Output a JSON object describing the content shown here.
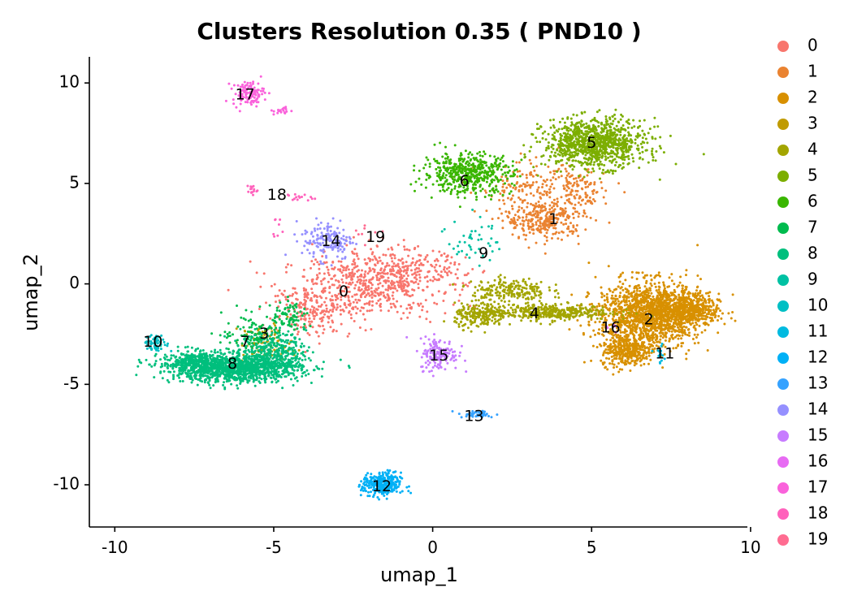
{
  "chart_data": {
    "type": "scatter",
    "title": "Clusters Resolution 0.35 ( PND10 )",
    "xlabel": "umap_1",
    "ylabel": "umap_2",
    "xlim": [
      -10.8,
      9.9
    ],
    "ylim": [
      -12.1,
      11.3
    ],
    "xticks": [
      -10,
      -5,
      0,
      5,
      10
    ],
    "yticks": [
      -10,
      -5,
      0,
      5,
      10
    ],
    "grid": false,
    "legend_position": "right",
    "legend": [
      {
        "name": "0",
        "color": "#F8766D"
      },
      {
        "name": "1",
        "color": "#EA8331"
      },
      {
        "name": "2",
        "color": "#D89000"
      },
      {
        "name": "3",
        "color": "#C09B00"
      },
      {
        "name": "4",
        "color": "#A3A500"
      },
      {
        "name": "5",
        "color": "#7CAE00"
      },
      {
        "name": "6",
        "color": "#39B600"
      },
      {
        "name": "7",
        "color": "#00BB4E"
      },
      {
        "name": "8",
        "color": "#00BF7D"
      },
      {
        "name": "9",
        "color": "#00C1A3"
      },
      {
        "name": "10",
        "color": "#00BFC4"
      },
      {
        "name": "11",
        "color": "#00BAE0"
      },
      {
        "name": "12",
        "color": "#00B0F6"
      },
      {
        "name": "13",
        "color": "#35A2FF"
      },
      {
        "name": "14",
        "color": "#9590FF"
      },
      {
        "name": "15",
        "color": "#C77CFF"
      },
      {
        "name": "16",
        "color": "#E76BF3"
      },
      {
        "name": "17",
        "color": "#FA62DB"
      },
      {
        "name": "18",
        "color": "#FF62BC"
      },
      {
        "name": "19",
        "color": "#FF6C91"
      }
    ],
    "clusters": [
      {
        "id": "0",
        "label_x": -2.8,
        "label_y": -0.4,
        "blobs": [
          {
            "cx": -2.2,
            "cy": -0.2,
            "sx": 1.3,
            "sy": 0.8,
            "n": 500
          },
          {
            "cx": -1.0,
            "cy": 0.6,
            "sx": 1.0,
            "sy": 0.6,
            "n": 250
          },
          {
            "cx": -3.8,
            "cy": -1.4,
            "sx": 0.6,
            "sy": 0.6,
            "n": 150
          }
        ]
      },
      {
        "id": "1",
        "label_x": 3.8,
        "label_y": 3.2,
        "blobs": [
          {
            "cx": 3.5,
            "cy": 3.2,
            "sx": 0.6,
            "sy": 0.5,
            "n": 300
          },
          {
            "cx": 3.0,
            "cy": 4.8,
            "sx": 0.8,
            "sy": 0.6,
            "n": 150
          },
          {
            "cx": 4.6,
            "cy": 4.5,
            "sx": 0.4,
            "sy": 0.7,
            "n": 120
          }
        ]
      },
      {
        "id": "2",
        "label_x": 6.8,
        "label_y": -1.8,
        "blobs": [
          {
            "cx": 6.8,
            "cy": -1.5,
            "sx": 0.8,
            "sy": 0.8,
            "n": 1400
          },
          {
            "cx": 8.0,
            "cy": -1.3,
            "sx": 0.5,
            "sy": 0.4,
            "n": 500
          },
          {
            "cx": 6.1,
            "cy": -3.3,
            "sx": 0.4,
            "sy": 0.4,
            "n": 350
          }
        ]
      },
      {
        "id": "3",
        "label_x": -5.3,
        "label_y": -2.5,
        "blobs": [
          {
            "cx": -5.2,
            "cy": -3.0,
            "sx": 0.4,
            "sy": 0.5,
            "n": 100
          }
        ]
      },
      {
        "id": "4",
        "label_x": 3.2,
        "label_y": -1.5,
        "blobs": [
          {
            "cx": 3.6,
            "cy": -1.4,
            "sx": 1.0,
            "sy": 0.2,
            "n": 400
          },
          {
            "cx": 2.4,
            "cy": -0.3,
            "sx": 0.6,
            "sy": 0.3,
            "n": 200
          },
          {
            "cx": 1.5,
            "cy": -1.6,
            "sx": 0.4,
            "sy": 0.3,
            "n": 200
          }
        ]
      },
      {
        "id": "5",
        "label_x": 5.0,
        "label_y": 7.0,
        "blobs": [
          {
            "cx": 5.1,
            "cy": 7.0,
            "sx": 0.8,
            "sy": 0.6,
            "n": 1000
          }
        ]
      },
      {
        "id": "6",
        "label_x": 1.0,
        "label_y": 5.1,
        "blobs": [
          {
            "cx": 1.1,
            "cy": 5.5,
            "sx": 0.7,
            "sy": 0.5,
            "n": 500
          }
        ]
      },
      {
        "id": "7",
        "label_x": -5.9,
        "label_y": -2.9,
        "blobs": [
          {
            "cx": -5.6,
            "cy": -2.5,
            "sx": 0.5,
            "sy": 0.5,
            "n": 120
          },
          {
            "cx": -4.5,
            "cy": -1.7,
            "sx": 0.3,
            "sy": 0.4,
            "n": 80
          }
        ]
      },
      {
        "id": "8",
        "label_x": -6.3,
        "label_y": -4.0,
        "blobs": [
          {
            "cx": -6.2,
            "cy": -4.2,
            "sx": 1.0,
            "sy": 0.35,
            "n": 1200
          },
          {
            "cx": -7.5,
            "cy": -3.9,
            "sx": 0.5,
            "sy": 0.3,
            "n": 300
          },
          {
            "cx": -5.0,
            "cy": -3.4,
            "sx": 0.5,
            "sy": 0.5,
            "n": 300
          }
        ]
      },
      {
        "id": "9",
        "label_x": 1.6,
        "label_y": 1.5,
        "blobs": [
          {
            "cx": 1.3,
            "cy": 2.2,
            "sx": 0.4,
            "sy": 0.6,
            "n": 45
          }
        ]
      },
      {
        "id": "10",
        "label_x": -8.8,
        "label_y": -2.9,
        "blobs": [
          {
            "cx": -8.7,
            "cy": -3.0,
            "sx": 0.2,
            "sy": 0.2,
            "n": 60
          }
        ]
      },
      {
        "id": "11",
        "label_x": 7.3,
        "label_y": -3.5,
        "blobs": [
          {
            "cx": 7.2,
            "cy": -3.4,
            "sx": 0.1,
            "sy": 0.3,
            "n": 15
          }
        ]
      },
      {
        "id": "12",
        "label_x": -1.6,
        "label_y": -10.1,
        "blobs": [
          {
            "cx": -1.6,
            "cy": -10.0,
            "sx": 0.3,
            "sy": 0.3,
            "n": 300
          }
        ]
      },
      {
        "id": "13",
        "label_x": 1.3,
        "label_y": -6.6,
        "blobs": [
          {
            "cx": 1.4,
            "cy": -6.5,
            "sx": 0.3,
            "sy": 0.1,
            "n": 40
          }
        ]
      },
      {
        "id": "14",
        "label_x": -3.2,
        "label_y": 2.1,
        "blobs": [
          {
            "cx": -3.3,
            "cy": 2.2,
            "sx": 0.4,
            "sy": 0.5,
            "n": 150
          }
        ]
      },
      {
        "id": "15",
        "label_x": 0.2,
        "label_y": -3.6,
        "blobs": [
          {
            "cx": 0.2,
            "cy": -3.5,
            "sx": 0.3,
            "sy": 0.4,
            "n": 150
          }
        ]
      },
      {
        "id": "16",
        "label_x": 5.6,
        "label_y": -2.2,
        "blobs": [
          {
            "cx": 5.6,
            "cy": -2.2,
            "sx": 0.1,
            "sy": 0.2,
            "n": 6
          }
        ]
      },
      {
        "id": "17",
        "label_x": -5.9,
        "label_y": 9.4,
        "blobs": [
          {
            "cx": -5.8,
            "cy": 9.5,
            "sx": 0.25,
            "sy": 0.3,
            "n": 120
          },
          {
            "cx": -4.7,
            "cy": 8.6,
            "sx": 0.15,
            "sy": 0.1,
            "n": 20
          }
        ]
      },
      {
        "id": "18",
        "label_x": -4.9,
        "label_y": 4.4,
        "blobs": [
          {
            "cx": -5.7,
            "cy": 4.7,
            "sx": 0.1,
            "sy": 0.15,
            "n": 15
          },
          {
            "cx": -4.2,
            "cy": 4.3,
            "sx": 0.2,
            "sy": 0.1,
            "n": 15
          },
          {
            "cx": -4.9,
            "cy": 2.7,
            "sx": 0.1,
            "sy": 0.3,
            "n": 8
          }
        ]
      },
      {
        "id": "19",
        "label_x": -1.8,
        "label_y": 2.3,
        "blobs": [
          {
            "cx": -2.2,
            "cy": 2.6,
            "sx": 0.3,
            "sy": 0.3,
            "n": 8
          }
        ]
      }
    ]
  }
}
